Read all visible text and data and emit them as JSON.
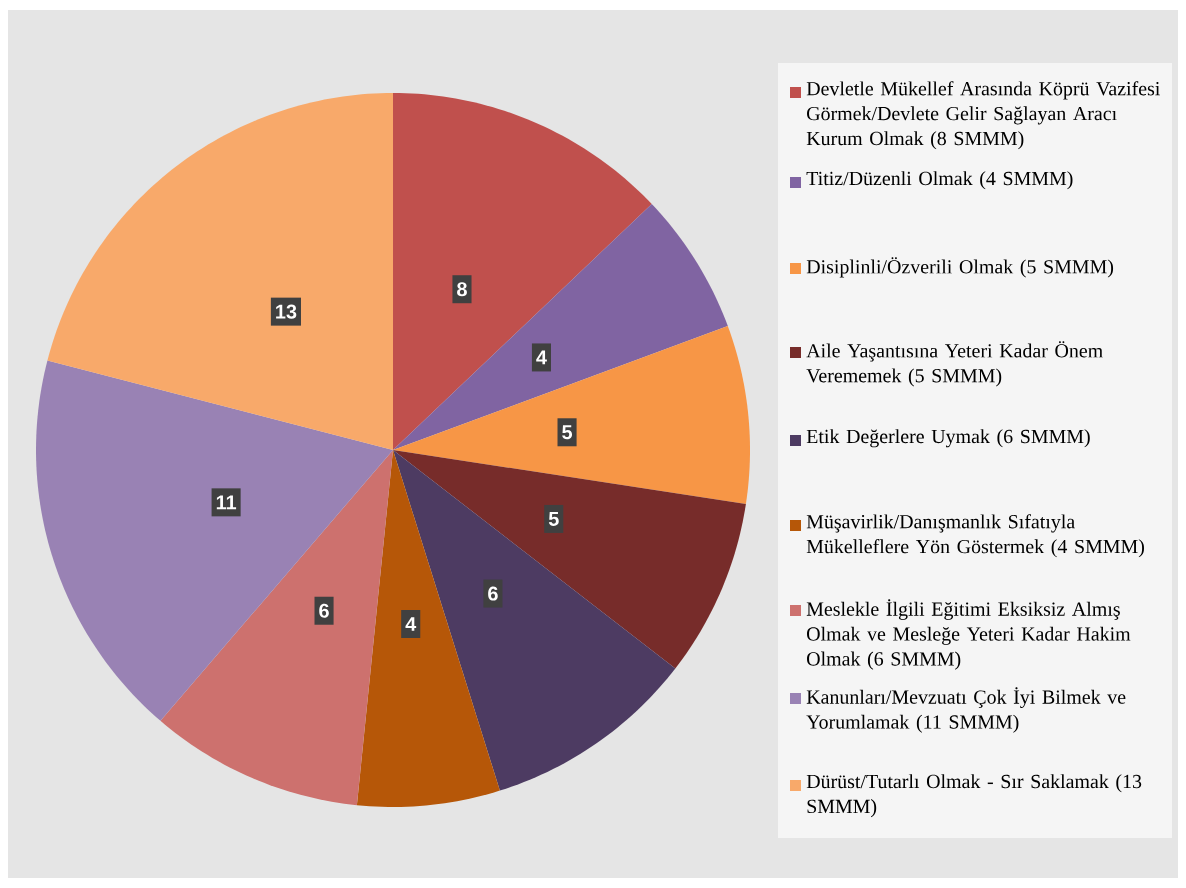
{
  "chart_data": {
    "type": "pie",
    "categories": [
      "Devletle Mükellef Arasında Köprü Vazifesi Görmek/Devlete Gelir Sağlayan Aracı Kurum Olmak (8 SMMM)",
      "Titiz/Düzenli Olmak (4 SMMM)",
      "Disiplinli/Özverili Olmak (5 SMMM)",
      "Aile Yaşantısına Yeteri Kadar Önem Verememek (5 SMMM)",
      "Etik Değerlere Uymak (6 SMMM)",
      "Müşavirlik/Danışmanlık Sıfatıyla Mükelleflere Yön Göstermek (4 SMMM)",
      "Meslekle İlgili Eğitimi Eksiksiz Almış Olmak ve Mesleğe Yeteri Kadar Hakim Olmak (6 SMMM)",
      "Kanunları/Mevzuatı Çok İyi Bilmek ve Yorumlamak (11 SMMM)",
      "Dürüst/Tutarlı Olmak - Sır Saklamak (13 SMMM)"
    ],
    "values": [
      8,
      4,
      5,
      5,
      6,
      4,
      6,
      11,
      13
    ],
    "colors": [
      "#c0504d",
      "#8064a2",
      "#f79646",
      "#772c2a",
      "#4d3b62",
      "#b65708",
      "#cd716e",
      "#9982b4",
      "#f8a96a"
    ],
    "data_labels": true,
    "legend": "right"
  }
}
